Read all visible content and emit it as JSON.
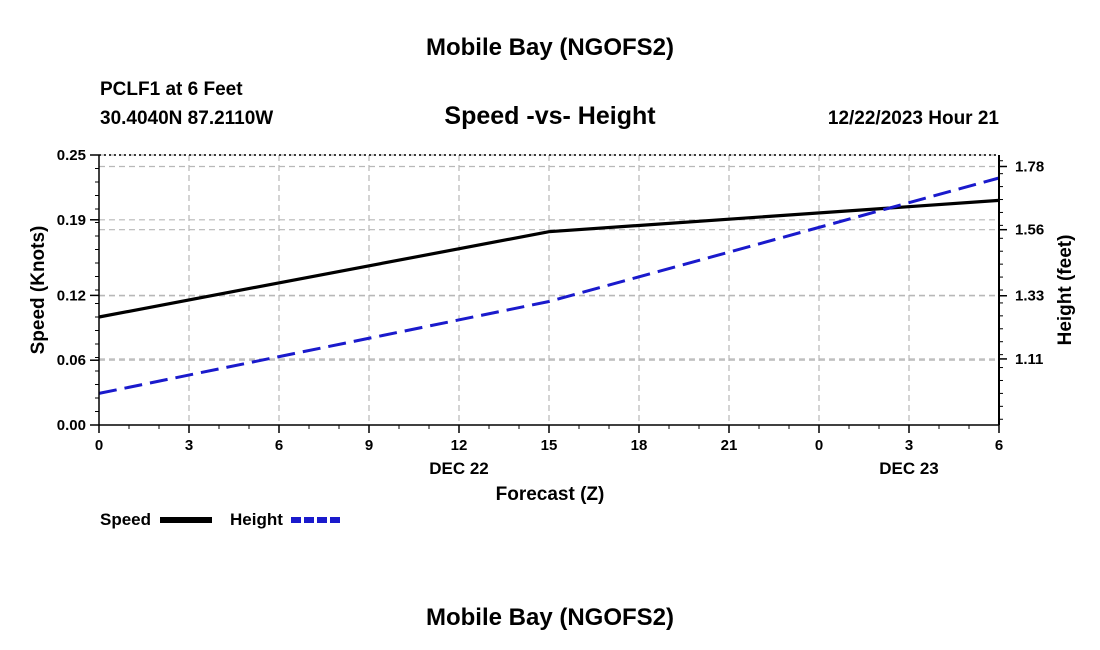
{
  "header": {
    "title": "Mobile Bay (NGOFS2)",
    "station_line1": "PCLF1 at 6 Feet",
    "station_line2": "30.4040N  87.2110W",
    "subtitle": "Speed -vs- Height",
    "datetime": "12/22/2023 Hour 21"
  },
  "footer": {
    "title": "Mobile Bay (NGOFS2)"
  },
  "chart_data": {
    "type": "line",
    "title": "Speed -vs- Height",
    "xlabel": "Forecast (Z)",
    "x_hours": [
      0,
      3,
      6,
      9,
      12,
      15,
      18,
      21,
      24,
      27,
      30
    ],
    "xtick_labels": [
      "0",
      "3",
      "6",
      "9",
      "12",
      "15",
      "18",
      "21",
      "0",
      "3",
      "6"
    ],
    "date_labels": [
      {
        "hour": 12,
        "text": "DEC 22"
      },
      {
        "hour": 27,
        "text": "DEC 23"
      }
    ],
    "xlim": [
      0,
      30
    ],
    "left_axis": {
      "label": "Speed (Knots)",
      "ylim": [
        0,
        0.25
      ],
      "ticks": [
        0,
        0.06,
        0.12,
        0.19,
        0.25
      ],
      "tick_labels": [
        "0.00",
        "0.06",
        "0.12",
        "0.19",
        "0.25"
      ]
    },
    "right_axis": {
      "label": "Height (feet)",
      "ylim": [
        0.88,
        1.82
      ],
      "ticks": [
        1.11,
        1.33,
        1.56,
        1.78
      ],
      "tick_labels": [
        "1.11",
        "1.33",
        "1.56",
        "1.78"
      ]
    },
    "series": [
      {
        "name": "Speed",
        "axis": "left",
        "color": "#000000",
        "style": "solid",
        "x": [
          0,
          15,
          30
        ],
        "values": [
          0.1,
          0.179,
          0.208
        ]
      },
      {
        "name": "Height",
        "axis": "right",
        "color": "#1a1acc",
        "style": "dashed",
        "x": [
          0,
          15,
          30
        ],
        "values": [
          0.99,
          1.31,
          1.74
        ]
      }
    ],
    "grid": true,
    "legend_position": "bottom-left"
  }
}
